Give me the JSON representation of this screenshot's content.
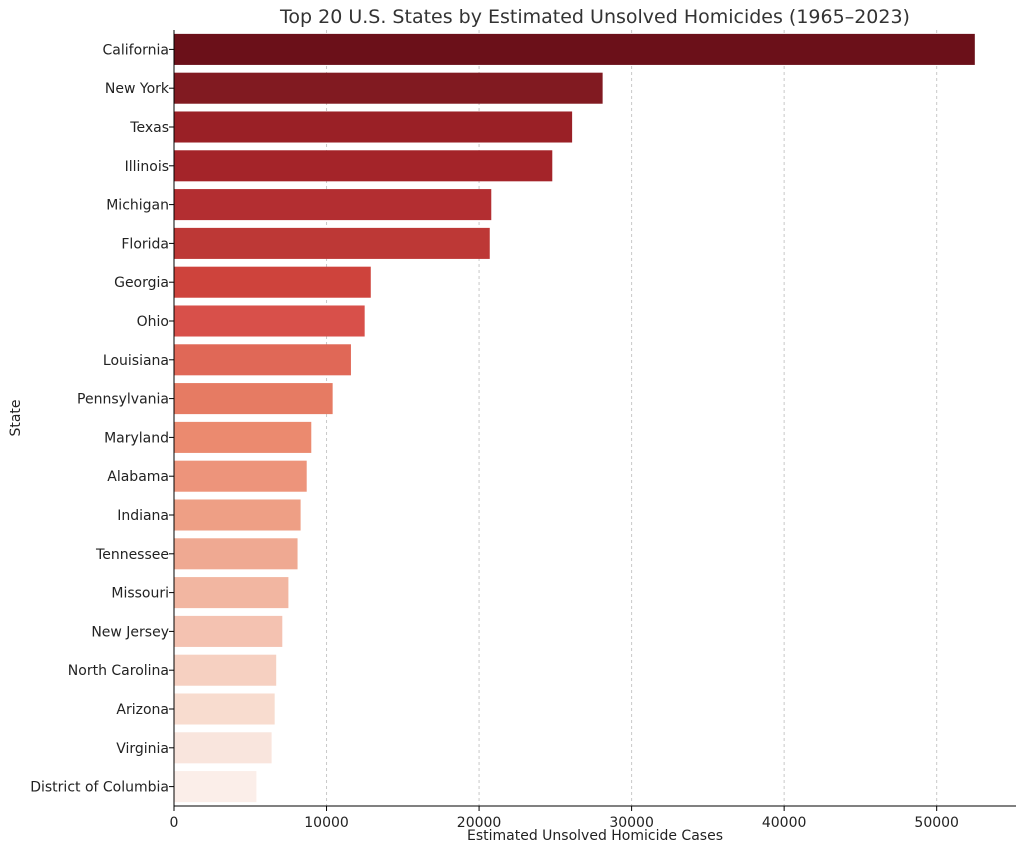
{
  "chart_data": {
    "type": "bar",
    "orientation": "horizontal",
    "title": "Top 20 U.S. States by Estimated Unsolved Homicides (1965–2023)",
    "xlabel": "Estimated Unsolved Homicide Cases",
    "ylabel": "State",
    "xlim": [
      0,
      55200
    ],
    "xticks": [
      0,
      10000,
      20000,
      30000,
      40000,
      50000
    ],
    "grid": "x-dashed",
    "colormap": "Reds (dark to light)",
    "categories": [
      "California",
      "New York",
      "Texas",
      "Illinois",
      "Michigan",
      "Florida",
      "Georgia",
      "Ohio",
      "Louisiana",
      "Pennsylvania",
      "Maryland",
      "Alabama",
      "Indiana",
      "Tennessee",
      "Missouri",
      "New Jersey",
      "North Carolina",
      "Arizona",
      "Virginia",
      "District of Columbia"
    ],
    "values": [
      52500,
      28100,
      26100,
      24800,
      20800,
      20700,
      12900,
      12500,
      11600,
      10400,
      9000,
      8700,
      8300,
      8100,
      7500,
      7100,
      6700,
      6600,
      6400,
      5400
    ],
    "colors": [
      "#6b1019",
      "#811a21",
      "#9a2026",
      "#a42429",
      "#b32e31",
      "#bd3836",
      "#ce433c",
      "#d8504a",
      "#e06857",
      "#e67b63",
      "#eb8a6f",
      "#ed947b",
      "#ee9f85",
      "#efa992",
      "#f2b6a1",
      "#f4c2b1",
      "#f6d0c1",
      "#f8dccf",
      "#f9e5dd",
      "#fbeee9"
    ]
  }
}
